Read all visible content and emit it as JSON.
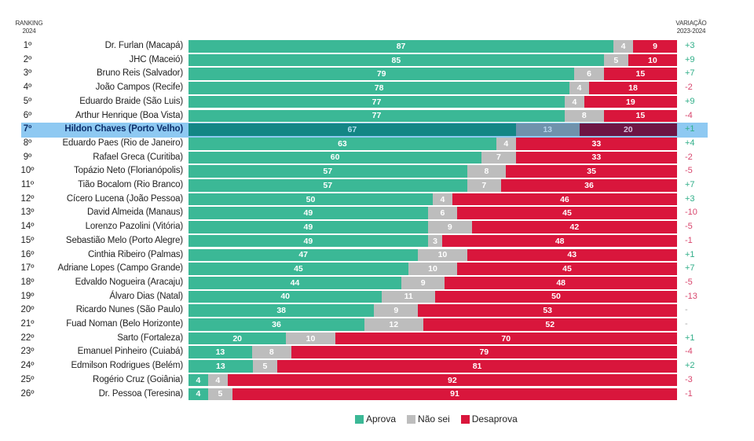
{
  "chart_data": {
    "type": "bar",
    "subtype": "stacked-horizontal-100",
    "headers": {
      "ranking": [
        "RANKING",
        "2024"
      ],
      "variation": [
        "VARIAÇÃO",
        "2023-2024"
      ]
    },
    "legend": [
      {
        "key": "aprova",
        "label": "Aprova",
        "color": "#3bb896"
      },
      {
        "key": "nao_sei",
        "label": "Não sei",
        "color": "#bdbdbd"
      },
      {
        "key": "desaprova",
        "label": "Desaprova",
        "color": "#d9163c"
      }
    ],
    "highlighted_rank": "7º",
    "highlight_color": "#8ec9f2",
    "xlim": [
      0,
      100
    ],
    "rows": [
      {
        "rank": "1º",
        "name": "Dr. Furlan (Macapá)",
        "aprova": 87,
        "nao_sei": 4,
        "desaprova": 9,
        "variation": "+3",
        "trend": "up"
      },
      {
        "rank": "2º",
        "name": "JHC (Maceió)",
        "aprova": 85,
        "nao_sei": 5,
        "desaprova": 10,
        "variation": "+9",
        "trend": "up"
      },
      {
        "rank": "3º",
        "name": "Bruno Reis (Salvador)",
        "aprova": 79,
        "nao_sei": 6,
        "desaprova": 15,
        "variation": "+7",
        "trend": "up"
      },
      {
        "rank": "4º",
        "name": "João Campos (Recife)",
        "aprova": 78,
        "nao_sei": 4,
        "desaprova": 18,
        "variation": "-2",
        "trend": "down"
      },
      {
        "rank": "5º",
        "name": "Eduardo Braide (São Luis)",
        "aprova": 77,
        "nao_sei": 4,
        "desaprova": 19,
        "variation": "+9",
        "trend": "up"
      },
      {
        "rank": "6º",
        "name": "Arthur Henrique (Boa Vista)",
        "aprova": 77,
        "nao_sei": 8,
        "desaprova": 15,
        "variation": "-4",
        "trend": "down"
      },
      {
        "rank": "7º",
        "name": "Hildon Chaves (Porto Velho)",
        "aprova": 67,
        "nao_sei": 13,
        "desaprova": 20,
        "variation": "+1",
        "trend": "up"
      },
      {
        "rank": "8º",
        "name": "Eduardo Paes (Rio de Janeiro)",
        "aprova": 63,
        "nao_sei": 4,
        "desaprova": 33,
        "variation": "+4",
        "trend": "up"
      },
      {
        "rank": "9º",
        "name": "Rafael Greca (Curitiba)",
        "aprova": 60,
        "nao_sei": 7,
        "desaprova": 33,
        "variation": "-2",
        "trend": "down"
      },
      {
        "rank": "10º",
        "name": "Topázio Neto (Florianópolis)",
        "aprova": 57,
        "nao_sei": 8,
        "desaprova": 35,
        "variation": "-5",
        "trend": "down"
      },
      {
        "rank": "11º",
        "name": "Tião Bocalom (Rio Branco)",
        "aprova": 57,
        "nao_sei": 7,
        "desaprova": 36,
        "variation": "+7",
        "trend": "up"
      },
      {
        "rank": "12º",
        "name": "Cícero Lucena (João Pessoa)",
        "aprova": 50,
        "nao_sei": 4,
        "desaprova": 46,
        "variation": "+3",
        "trend": "up"
      },
      {
        "rank": "13º",
        "name": "David Almeida (Manaus)",
        "aprova": 49,
        "nao_sei": 6,
        "desaprova": 45,
        "variation": "-10",
        "trend": "down"
      },
      {
        "rank": "14º",
        "name": "Lorenzo Pazolini (Vitória)",
        "aprova": 49,
        "nao_sei": 9,
        "desaprova": 42,
        "variation": "-5",
        "trend": "down"
      },
      {
        "rank": "15º",
        "name": "Sebastião Melo (Porto Alegre)",
        "aprova": 49,
        "nao_sei": 3,
        "desaprova": 48,
        "variation": "-1",
        "trend": "down"
      },
      {
        "rank": "16º",
        "name": "Cinthia Ribeiro (Palmas)",
        "aprova": 47,
        "nao_sei": 10,
        "desaprova": 43,
        "variation": "+1",
        "trend": "up"
      },
      {
        "rank": "17º",
        "name": "Adriane Lopes (Campo Grande)",
        "aprova": 45,
        "nao_sei": 10,
        "desaprova": 45,
        "variation": "+7",
        "trend": "up"
      },
      {
        "rank": "18º",
        "name": "Edvaldo Nogueira (Aracaju)",
        "aprova": 44,
        "nao_sei": 9,
        "desaprova": 48,
        "variation": "-5",
        "trend": "down"
      },
      {
        "rank": "19º",
        "name": "Álvaro Dias (Natal)",
        "aprova": 40,
        "nao_sei": 11,
        "desaprova": 50,
        "variation": "-13",
        "trend": "down"
      },
      {
        "rank": "20º",
        "name": "Ricardo Nunes (São Paulo)",
        "aprova": 38,
        "nao_sei": 9,
        "desaprova": 53,
        "variation": "-",
        "trend": "none"
      },
      {
        "rank": "21º",
        "name": "Fuad Noman (Belo Horizonte)",
        "aprova": 36,
        "nao_sei": 12,
        "desaprova": 52,
        "variation": "-",
        "trend": "none"
      },
      {
        "rank": "22º",
        "name": "Sarto (Fortaleza)",
        "aprova": 20,
        "nao_sei": 10,
        "desaprova": 70,
        "variation": "+1",
        "trend": "up"
      },
      {
        "rank": "23º",
        "name": "Emanuel Pinheiro (Cuiabá)",
        "aprova": 13,
        "nao_sei": 8,
        "desaprova": 79,
        "variation": "-4",
        "trend": "down"
      },
      {
        "rank": "24º",
        "name": "Edmilson Rodrigues (Belém)",
        "aprova": 13,
        "nao_sei": 5,
        "desaprova": 81,
        "variation": "+2",
        "trend": "up"
      },
      {
        "rank": "25º",
        "name": "Rogério Cruz (Goiânia)",
        "aprova": 4,
        "nao_sei": 4,
        "desaprova": 92,
        "variation": "-3",
        "trend": "down"
      },
      {
        "rank": "26º",
        "name": "Dr. Pessoa (Teresina)",
        "aprova": 4,
        "nao_sei": 5,
        "desaprova": 91,
        "variation": "-1",
        "trend": "down"
      }
    ]
  }
}
